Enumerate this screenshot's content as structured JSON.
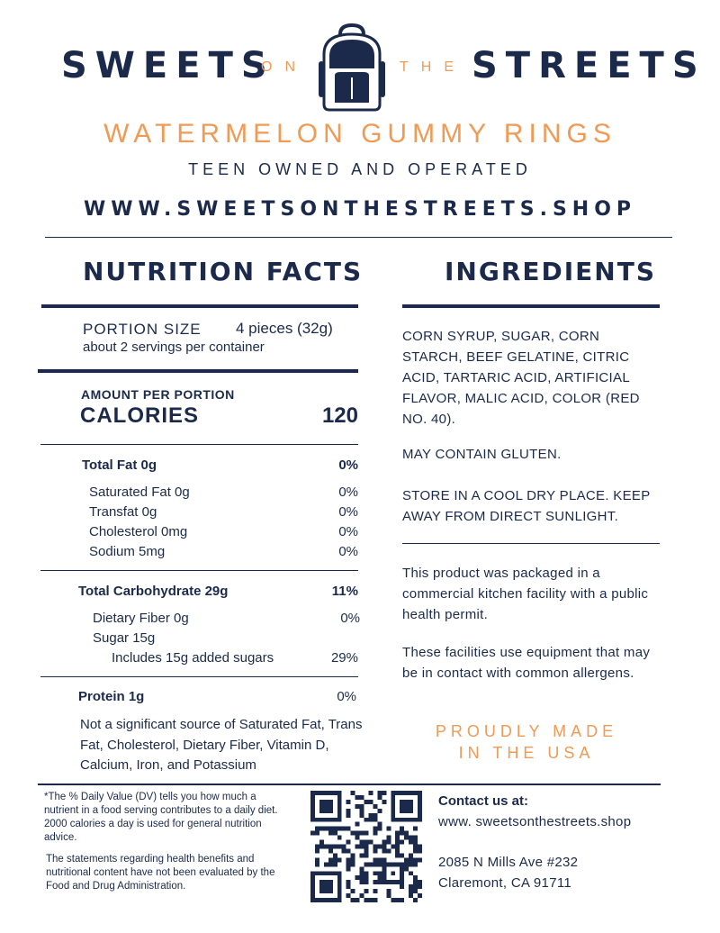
{
  "header": {
    "brand_left": "SWEETS",
    "brand_on": "ON",
    "brand_the": "THE",
    "brand_right": "STREETS",
    "product_name": "WATERMELON GUMMY RINGS",
    "tagline": "TEEN OWNED AND OPERATED",
    "website": "WWW.SWEETSONTHESTREETS.SHOP"
  },
  "nutrition": {
    "title": "NUTRITION FACTS",
    "portion_label": "PORTION SIZE",
    "portion_value": "4 pieces (32g)",
    "servings": "about 2 servings per container",
    "amount_label": "AMOUNT PER PORTION",
    "calories_label": "CALORIES",
    "calories_value": "120",
    "rows": [
      {
        "label": "Total Fat 0g",
        "value": "0%"
      },
      {
        "label": "Saturated Fat 0g",
        "value": "0%"
      },
      {
        "label": "Transfat 0g",
        "value": "0%"
      },
      {
        "label": "Cholesterol 0mg",
        "value": "0%"
      },
      {
        "label": "Sodium 5mg",
        "value": "0%"
      },
      {
        "label": "Total Carbohydrate 29g",
        "value": "11%"
      },
      {
        "label": "Dietary Fiber 0g",
        "value": "0%"
      },
      {
        "label": "Sugar 15g",
        "value": ""
      },
      {
        "label": "Includes 15g added sugars",
        "value": "29%"
      },
      {
        "label": "Protein 1g",
        "value": "0%"
      }
    ],
    "note": "Not a significant source of Saturated Fat, Trans Fat, Cholesterol, Dietary Fiber, Vitamin D, Calcium, Iron, and Potassium"
  },
  "ingredients": {
    "title": "INGREDIENTS",
    "list": "CORN SYRUP, SUGAR, CORN STARCH, BEEF GELATINE, CITRIC ACID, TARTARIC ACID, ARTIFICIAL FLAVOR, MALIC ACID, COLOR (RED NO. 40).",
    "gluten": "MAY CONTAIN GLUTEN.",
    "storage": "STORE IN A COOL DRY PLACE. KEEP AWAY FROM DIRECT SUNLIGHT.",
    "facility": "This product was  packaged in a commercial kitchen facility with a public health permit.",
    "allergens": "These facilities use equipment that may be in contact with common allergens.",
    "made_line1": "PROUDLY MADE",
    "made_line2": "IN THE USA"
  },
  "footer": {
    "dv_note": "*The % Daily Value (DV) tells you how much a nutrient in a food serving contributes to a daily diet. 2000 calories a day is used for general nutrition advice.",
    "fda_note": "The statements regarding health benefits and nutritional content have not been evaluated by the Food and Drug Administration.",
    "contact_label": "Contact us at:",
    "contact_web": "www. sweetsonthestreets.shop",
    "address_line1": "2085 N Mills Ave #232",
    "address_line2": "Claremont, CA 91711"
  },
  "icons": {
    "logo": "backpack-icon",
    "qr": "qr-code-icon"
  },
  "colors": {
    "navy": "#1b2a4a",
    "orange": "#ef9a55"
  }
}
